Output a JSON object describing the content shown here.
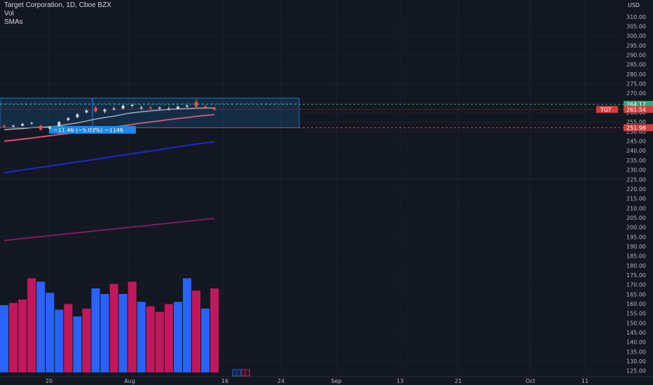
{
  "header": {
    "title": "Target Corporation, 1D, Cboe BZX",
    "indicator_vol": "Vol",
    "indicator_sma": "SMAs"
  },
  "price_axis": {
    "currency": "USD",
    "ticks": [
      "310.00",
      "305.00",
      "300.00",
      "295.00",
      "290.00",
      "285.00",
      "280.00",
      "275.00",
      "270.00",
      "265.00",
      "260.00",
      "255.00",
      "250.00",
      "245.00",
      "240.00",
      "235.00",
      "230.00",
      "225.00",
      "220.00",
      "215.00",
      "210.00",
      "205.00",
      "200.00",
      "195.00",
      "190.00",
      "185.00",
      "180.00",
      "175.00",
      "170.00",
      "165.00",
      "160.00",
      "155.00",
      "150.00",
      "145.00",
      "140.00",
      "135.00",
      "130.00",
      "125.00"
    ]
  },
  "time_axis": {
    "labels": [
      "20",
      "Aug",
      "16",
      "24",
      "Sep",
      "13",
      "21",
      "Oct",
      "11"
    ]
  },
  "price_labels": {
    "upper": "264.17",
    "symbol": "TGT",
    "last": "261.54",
    "lower": "251.98"
  },
  "range_measure": {
    "label": "−11.46 (−5.03%) −1146"
  },
  "buttons": {
    "d": "D",
    "e": "E"
  },
  "colors": {
    "background": "#131722",
    "up": "#2962ff",
    "down": "#c2185b",
    "sma_short": "#b2b5be",
    "sma_mid": "#e04f6b",
    "sma_long": "#1f2ac8",
    "sma_longest": "#7b1e5a",
    "range_box": "#1e88e5",
    "label_green": "#3aa37a",
    "label_red": "#d83b3b"
  },
  "chart_data": {
    "type": "candlestick",
    "price_range": [
      125,
      312
    ],
    "candles": [
      {
        "o": 253.0,
        "h": 253.8,
        "l": 251.8,
        "c": 252.5
      },
      {
        "o": 252.6,
        "h": 253.5,
        "l": 251.9,
        "c": 253.1
      },
      {
        "o": 253.1,
        "h": 254.5,
        "l": 252.8,
        "c": 254.0
      },
      {
        "o": 254.1,
        "h": 255.0,
        "l": 253.6,
        "c": 254.5
      },
      {
        "o": 253.0,
        "h": 253.6,
        "l": 250.5,
        "c": 251.0
      },
      {
        "o": 251.5,
        "h": 253.0,
        "l": 251.0,
        "c": 252.6
      },
      {
        "o": 252.8,
        "h": 255.5,
        "l": 252.5,
        "c": 255.0
      },
      {
        "o": 256.0,
        "h": 257.5,
        "l": 255.5,
        "c": 257.0
      },
      {
        "o": 257.5,
        "h": 259.5,
        "l": 257.0,
        "c": 259.0
      },
      {
        "o": 260.0,
        "h": 262.0,
        "l": 259.5,
        "c": 261.0
      },
      {
        "o": 262.5,
        "h": 263.5,
        "l": 260.0,
        "c": 260.5
      },
      {
        "o": 260.5,
        "h": 262.0,
        "l": 259.5,
        "c": 261.5
      },
      {
        "o": 261.5,
        "h": 263.0,
        "l": 261.0,
        "c": 262.0
      },
      {
        "o": 262.0,
        "h": 264.0,
        "l": 261.5,
        "c": 263.5
      },
      {
        "o": 263.5,
        "h": 264.5,
        "l": 262.5,
        "c": 264.0
      },
      {
        "o": 262.0,
        "h": 263.5,
        "l": 261.0,
        "c": 262.5
      },
      {
        "o": 262.5,
        "h": 263.5,
        "l": 261.5,
        "c": 262.0
      },
      {
        "o": 262.0,
        "h": 263.0,
        "l": 261.0,
        "c": 262.5
      },
      {
        "o": 262.0,
        "h": 263.0,
        "l": 261.0,
        "c": 262.0
      },
      {
        "o": 262.0,
        "h": 263.5,
        "l": 261.5,
        "c": 263.0
      },
      {
        "o": 263.0,
        "h": 264.0,
        "l": 262.5,
        "c": 263.5
      },
      {
        "o": 265.5,
        "h": 267.0,
        "l": 262.0,
        "c": 263.0
      },
      {
        "o": 263.0,
        "h": 264.0,
        "l": 262.0,
        "c": 262.5
      },
      {
        "o": 262.5,
        "h": 263.0,
        "l": 261.0,
        "c": 261.5
      }
    ],
    "volume": [
      {
        "v": 0.6,
        "up": true
      },
      {
        "v": 0.62,
        "up": false
      },
      {
        "v": 0.65,
        "up": false
      },
      {
        "v": 0.84,
        "up": false
      },
      {
        "v": 0.81,
        "up": true
      },
      {
        "v": 0.71,
        "up": true
      },
      {
        "v": 0.56,
        "up": true
      },
      {
        "v": 0.61,
        "up": false
      },
      {
        "v": 0.5,
        "up": true
      },
      {
        "v": 0.57,
        "up": false
      },
      {
        "v": 0.75,
        "up": true
      },
      {
        "v": 0.7,
        "up": true
      },
      {
        "v": 0.79,
        "up": false
      },
      {
        "v": 0.7,
        "up": true
      },
      {
        "v": 0.81,
        "up": false
      },
      {
        "v": 0.63,
        "up": true
      },
      {
        "v": 0.59,
        "up": false
      },
      {
        "v": 0.54,
        "up": false
      },
      {
        "v": 0.61,
        "up": false
      },
      {
        "v": 0.63,
        "up": true
      },
      {
        "v": 0.84,
        "up": true
      },
      {
        "v": 0.73,
        "up": false
      },
      {
        "v": 0.57,
        "up": true
      },
      {
        "v": 0.75,
        "up": false
      }
    ],
    "sma_short": [
      251.0,
      251.3,
      251.5,
      252.0,
      252.2,
      252.5,
      253.0,
      253.8,
      254.5,
      255.5,
      256.5,
      257.3,
      258.0,
      259.0,
      259.8,
      260.3,
      260.8,
      261.2,
      261.5,
      261.8,
      262.0,
      262.2,
      262.3,
      262.3
    ],
    "sma_mid": [
      245.0,
      245.5,
      246.0,
      246.6,
      247.2,
      247.8,
      248.4,
      249.0,
      249.6,
      250.3,
      251.0,
      251.7,
      252.3,
      253.0,
      253.7,
      254.4,
      255.0,
      255.6,
      256.2,
      256.8,
      257.3,
      257.9,
      258.4,
      258.8
    ],
    "sma_long": [
      228.5,
      229.2,
      229.9,
      230.6,
      231.3,
      232.0,
      232.7,
      233.4,
      234.1,
      234.8,
      235.5,
      236.3,
      237.0,
      237.7,
      238.4,
      239.1,
      239.8,
      240.6,
      241.3,
      242.0,
      242.7,
      243.4,
      244.0,
      244.7
    ],
    "sma_longest": [
      193.0,
      193.6,
      194.1,
      194.6,
      195.1,
      195.6,
      196.1,
      196.6,
      197.1,
      197.6,
      198.1,
      198.6,
      199.1,
      199.6,
      200.1,
      200.6,
      201.1,
      201.6,
      202.1,
      202.6,
      203.1,
      203.6,
      204.1,
      204.6
    ],
    "range_high": 264.17,
    "range_low": 251.98,
    "last_price": 261.54
  }
}
